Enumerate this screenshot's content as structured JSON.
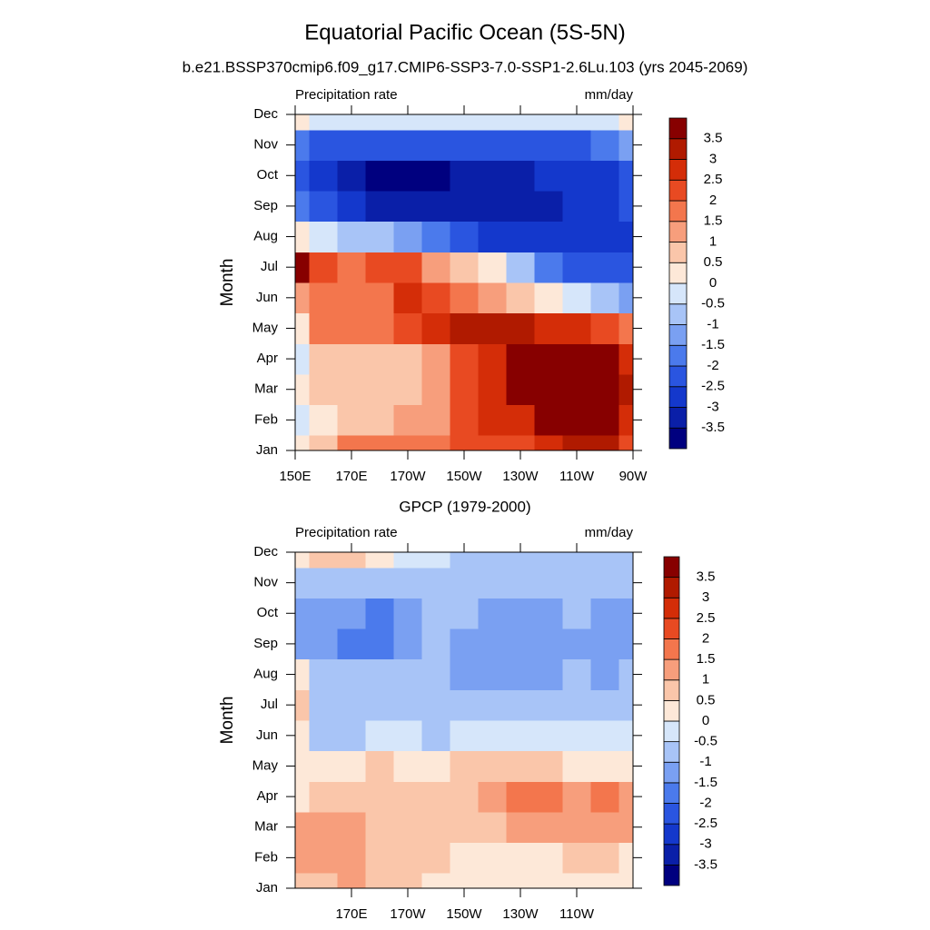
{
  "title": "Equatorial Pacific Ocean (5S-5N)",
  "subtitle": "b.e21.BSSP370cmip6.f09_g17.CMIP6-SSP3-7.0-SSP1-2.6Lu.103 (yrs 2045-2069)",
  "chart_data": [
    {
      "type": "contour",
      "left_label": "Precipitation rate",
      "right_label": "mm/day",
      "ylabel": "Month",
      "categories": [
        "Jan",
        "Feb",
        "Mar",
        "Apr",
        "May",
        "Jun",
        "Jul",
        "Aug",
        "Sep",
        "Oct",
        "Nov",
        "Dec"
      ],
      "x": [
        150,
        160,
        170,
        180,
        190,
        200,
        210,
        220,
        230,
        240,
        250,
        260,
        270
      ],
      "xlim": [
        150,
        270
      ],
      "xticks": [
        {
          "value": 150,
          "label": "150E"
        },
        {
          "value": 170,
          "label": "170E"
        },
        {
          "value": 190,
          "label": "170W"
        },
        {
          "value": 210,
          "label": "150W"
        },
        {
          "value": 230,
          "label": "130W"
        },
        {
          "value": 250,
          "label": "110W"
        },
        {
          "value": 270,
          "label": "90W"
        }
      ],
      "levels": [
        -3.5,
        -3,
        -2.5,
        -2,
        -1.5,
        -1,
        -0.5,
        0,
        0.5,
        1,
        1.5,
        2,
        2.5,
        3,
        3.5
      ],
      "colors": [
        "#00007f",
        "#0a1fa8",
        "#1438cc",
        "#2a55e0",
        "#4b7aec",
        "#7aa0f2",
        "#a8c4f7",
        "#d6e6fa",
        "#fde8d8",
        "#fac6aa",
        "#f79e7c",
        "#f3764d",
        "#e84a22",
        "#d42d08",
        "#b01a00",
        "#870000"
      ],
      "z": [
        [
          0.5,
          1,
          2,
          2,
          2,
          2,
          2.5,
          2.5,
          2.5,
          3,
          3.5,
          3.5,
          2.5
        ],
        [
          -0.2,
          0.3,
          0.8,
          1,
          1.2,
          1.5,
          2.5,
          2.8,
          3,
          3.7,
          3.8,
          3.8,
          3
        ],
        [
          0.2,
          0.6,
          0.8,
          0.7,
          0.8,
          1.2,
          2.5,
          3,
          3.7,
          3.8,
          3.8,
          3.8,
          3.2
        ],
        [
          -0.2,
          0.6,
          0.7,
          0.6,
          0.7,
          1.2,
          2.5,
          3,
          3.8,
          3.8,
          3.8,
          3.8,
          3
        ],
        [
          0.3,
          1.8,
          1.8,
          1.8,
          2.2,
          3,
          3.3,
          3.3,
          3.2,
          3,
          2.8,
          2.5,
          2
        ],
        [
          1.5,
          2,
          1.8,
          2,
          2.7,
          2.5,
          2,
          1.5,
          1,
          0.5,
          0,
          -0.5,
          -1
        ],
        [
          3.8,
          2.5,
          2,
          2.2,
          2.2,
          1.5,
          1,
          0.5,
          -0.5,
          -1.5,
          -2,
          -2.2,
          -2.2
        ],
        [
          0.5,
          -0.3,
          -0.5,
          -0.8,
          -1,
          -1.5,
          -2,
          -2.5,
          -2.7,
          -2.7,
          -2.6,
          -2.6,
          -2.5
        ],
        [
          -1.5,
          -2.3,
          -2.6,
          -3,
          -3,
          -3,
          -3.2,
          -3.2,
          -3,
          -3,
          -2.7,
          -2.5,
          -2
        ],
        [
          -2,
          -2.6,
          -3.2,
          -3.6,
          -3.6,
          -3.6,
          -3.2,
          -3,
          -3,
          -2.8,
          -2.6,
          -2.5,
          -2
        ],
        [
          -1.6,
          -2,
          -2.2,
          -2.3,
          -2.3,
          -2.3,
          -2.2,
          -2.2,
          -2.2,
          -2,
          -2,
          -1.8,
          -1.4
        ],
        [
          0.3,
          0,
          -0.3,
          -0.3,
          -0.3,
          -0.2,
          -0.3,
          -0.2,
          -0.2,
          -0.3,
          -0.3,
          0,
          0.2
        ]
      ]
    },
    {
      "type": "contour",
      "title": "GPCP (1979-2000)",
      "left_label": "Precipitation rate",
      "right_label": "mm/day",
      "ylabel": "Month",
      "categories": [
        "Jan",
        "Feb",
        "Mar",
        "Apr",
        "May",
        "Jun",
        "Jul",
        "Aug",
        "Sep",
        "Oct",
        "Nov",
        "Dec"
      ],
      "x": [
        150,
        160,
        170,
        180,
        190,
        200,
        210,
        220,
        230,
        240,
        250,
        260,
        270
      ],
      "xlim": [
        150,
        270
      ],
      "xticks": [
        {
          "value": 170,
          "label": "170E"
        },
        {
          "value": 190,
          "label": "170W"
        },
        {
          "value": 210,
          "label": "150W"
        },
        {
          "value": 230,
          "label": "130W"
        },
        {
          "value": 250,
          "label": "110W"
        }
      ],
      "levels": [
        -3.5,
        -3,
        -2.5,
        -2,
        -1.5,
        -1,
        -0.5,
        0,
        0.5,
        1,
        1.5,
        2,
        2.5,
        3,
        3.5
      ],
      "colors": [
        "#00007f",
        "#0a1fa8",
        "#1438cc",
        "#2a55e0",
        "#4b7aec",
        "#7aa0f2",
        "#a8c4f7",
        "#d6e6fa",
        "#fde8d8",
        "#fac6aa",
        "#f79e7c",
        "#f3764d",
        "#e84a22",
        "#d42d08",
        "#b01a00",
        "#870000"
      ],
      "z": [
        [
          0.8,
          1,
          1.2,
          0.8,
          0.6,
          0.4,
          0.3,
          0.2,
          0.3,
          0.2,
          0.3,
          0.3,
          0.2
        ],
        [
          1.2,
          1.3,
          1.4,
          0.9,
          0.8,
          0.6,
          0.5,
          0.4,
          0.5,
          0.5,
          0.6,
          0.6,
          0.5
        ],
        [
          1.2,
          1.2,
          1.2,
          1,
          0.9,
          0.8,
          0.9,
          1,
          1.3,
          1.4,
          1.4,
          1.5,
          1.3
        ],
        [
          0.5,
          0.6,
          0.8,
          0.6,
          0.6,
          0.8,
          1,
          1.4,
          1.6,
          1.7,
          1.5,
          1.7,
          1.4
        ],
        [
          0.3,
          0.2,
          0.5,
          0.6,
          0.4,
          0.5,
          0.6,
          0.7,
          0.8,
          0.6,
          0.5,
          0.4,
          0.3
        ],
        [
          0.5,
          -0.7,
          -0.7,
          -0.3,
          -0.4,
          -0.6,
          -0.4,
          -0.3,
          -0.2,
          -0.1,
          -0.2,
          -0.2,
          -0.3
        ],
        [
          0.7,
          -0.7,
          -0.8,
          -0.8,
          -0.7,
          -0.8,
          -0.7,
          -0.7,
          -0.7,
          -0.7,
          -0.6,
          -0.7,
          -0.7
        ],
        [
          0.2,
          -0.8,
          -0.9,
          -0.9,
          -0.9,
          -0.9,
          -1,
          -1.2,
          -1.2,
          -1.2,
          -0.9,
          -1.1,
          -0.9
        ],
        [
          -1.2,
          -1.2,
          -1.9,
          -1.6,
          -1.1,
          -0.9,
          -1.1,
          -1.3,
          -1.3,
          -1.3,
          -1,
          -1.2,
          -1.2
        ],
        [
          -1.1,
          -1.1,
          -1.4,
          -1.7,
          -1.1,
          -0.9,
          -0.9,
          -1.1,
          -1.2,
          -1,
          -0.8,
          -1,
          -1.1
        ],
        [
          -0.9,
          -0.8,
          -0.8,
          -0.8,
          -0.8,
          -0.8,
          -0.7,
          -0.7,
          -0.7,
          -0.7,
          -0.7,
          -0.8,
          -0.7
        ],
        [
          0.2,
          0.7,
          0.8,
          0.4,
          -0.1,
          -0.4,
          -0.5,
          -0.5,
          -0.5,
          -0.5,
          -0.6,
          -0.6,
          -0.6
        ]
      ]
    }
  ]
}
